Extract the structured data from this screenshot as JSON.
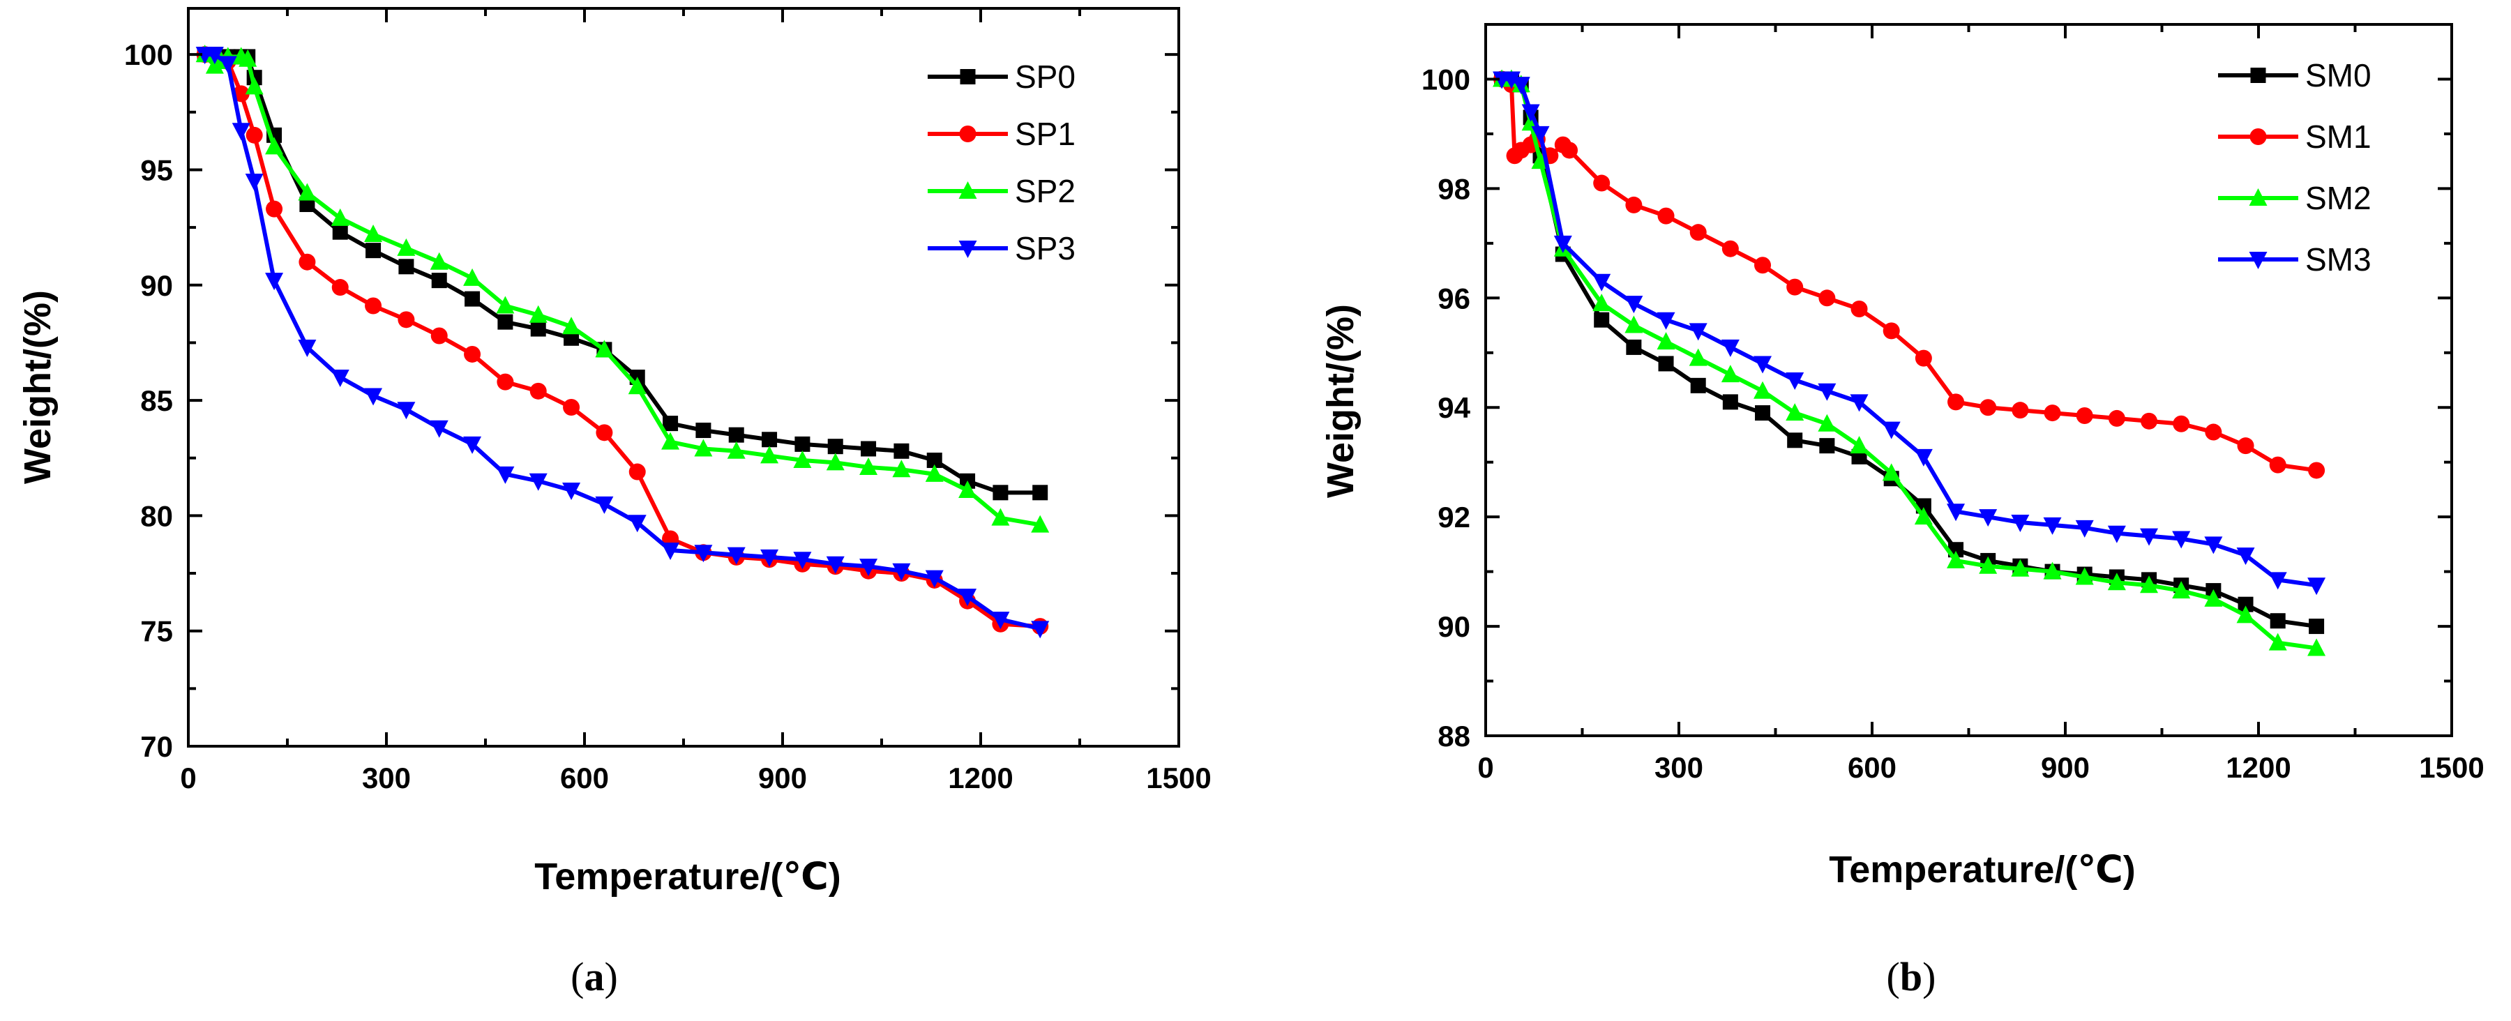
{
  "chart_data": [
    {
      "type": "line",
      "panel_label": "(a)",
      "xlabel": "Temperature/(℃)",
      "ylabel": "Weight/(%)",
      "xlim": [
        0,
        1500
      ],
      "ylim": [
        70,
        102
      ],
      "xticks": [
        0,
        300,
        600,
        900,
        1200,
        1500
      ],
      "yticks": [
        70,
        75,
        80,
        85,
        90,
        95,
        100
      ],
      "grid": false,
      "legend_position": "top-right",
      "series": [
        {
          "name": "SP0",
          "color": "#000000",
          "marker": "square",
          "x": [
            25,
            40,
            50,
            60,
            80,
            90,
            100,
            130,
            180,
            230,
            280,
            330,
            380,
            430,
            480,
            530,
            580,
            630,
            680,
            730,
            780,
            830,
            880,
            930,
            980,
            1030,
            1080,
            1130,
            1180,
            1230,
            1290
          ],
          "y": [
            100,
            100,
            99.8,
            99.9,
            99.9,
            99.9,
            99.0,
            96.5,
            93.5,
            92.3,
            91.5,
            90.8,
            90.2,
            89.4,
            88.4,
            88.1,
            87.7,
            87.2,
            86.0,
            84.0,
            83.7,
            83.5,
            83.3,
            83.1,
            83.0,
            82.9,
            82.8,
            82.4,
            81.5,
            81.0,
            81.0
          ]
        },
        {
          "name": "SP1",
          "color": "#ff0000",
          "marker": "circle",
          "x": [
            25,
            40,
            60,
            80,
            100,
            130,
            180,
            230,
            280,
            330,
            380,
            430,
            480,
            530,
            580,
            630,
            680,
            730,
            780,
            830,
            880,
            930,
            980,
            1030,
            1080,
            1130,
            1180,
            1230,
            1290
          ],
          "y": [
            100,
            99.9,
            99.7,
            98.3,
            96.5,
            93.3,
            91.0,
            89.9,
            89.1,
            88.5,
            87.8,
            87.0,
            85.8,
            85.4,
            84.7,
            83.6,
            81.9,
            79.0,
            78.4,
            78.2,
            78.1,
            77.9,
            77.8,
            77.6,
            77.5,
            77.2,
            76.3,
            75.3,
            75.2
          ]
        },
        {
          "name": "SP2",
          "color": "#00ff00",
          "marker": "triangle-up",
          "x": [
            25,
            40,
            50,
            60,
            80,
            90,
            100,
            130,
            180,
            230,
            280,
            330,
            380,
            430,
            480,
            530,
            580,
            630,
            680,
            730,
            780,
            830,
            880,
            930,
            980,
            1030,
            1080,
            1130,
            1180,
            1230,
            1290
          ],
          "y": [
            100,
            99.5,
            99.7,
            99.9,
            99.9,
            99.8,
            98.6,
            96.0,
            94.0,
            92.9,
            92.2,
            91.6,
            91.0,
            90.3,
            89.1,
            88.7,
            88.2,
            87.2,
            85.6,
            83.2,
            82.9,
            82.8,
            82.6,
            82.4,
            82.3,
            82.1,
            82.0,
            81.8,
            81.1,
            79.9,
            79.6
          ]
        },
        {
          "name": "SP3",
          "color": "#0000ff",
          "marker": "triangle-down",
          "x": [
            25,
            40,
            60,
            80,
            100,
            130,
            180,
            230,
            280,
            330,
            380,
            430,
            480,
            530,
            580,
            630,
            680,
            730,
            780,
            830,
            880,
            930,
            980,
            1030,
            1080,
            1130,
            1180,
            1230,
            1290
          ],
          "y": [
            100,
            100,
            99.6,
            96.7,
            94.5,
            90.2,
            87.3,
            86.0,
            85.2,
            84.6,
            83.8,
            83.1,
            81.8,
            81.5,
            81.1,
            80.5,
            79.7,
            78.5,
            78.4,
            78.3,
            78.2,
            78.1,
            77.9,
            77.8,
            77.6,
            77.3,
            76.5,
            75.5,
            75.1
          ]
        }
      ]
    },
    {
      "type": "line",
      "panel_label": "(b)",
      "xlabel": "Temperature/(℃)",
      "ylabel": "Weight/(%)",
      "xlim": [
        0,
        1500
      ],
      "ylim": [
        88,
        101
      ],
      "xticks": [
        0,
        300,
        600,
        900,
        1200,
        1500
      ],
      "yticks": [
        88,
        90,
        92,
        94,
        96,
        98,
        100
      ],
      "grid": false,
      "legend_position": "top-right",
      "series": [
        {
          "name": "SM0",
          "color": "#000000",
          "marker": "square",
          "x": [
            25,
            40,
            55,
            70,
            85,
            120,
            180,
            230,
            280,
            330,
            380,
            430,
            480,
            530,
            580,
            630,
            680,
            730,
            780,
            830,
            880,
            930,
            980,
            1030,
            1080,
            1130,
            1180,
            1230,
            1290
          ],
          "y": [
            100,
            100,
            99.9,
            99.3,
            98.6,
            96.8,
            95.6,
            95.1,
            94.8,
            94.4,
            94.1,
            93.9,
            93.4,
            93.3,
            93.1,
            92.7,
            92.2,
            91.4,
            91.2,
            91.1,
            91.0,
            90.95,
            90.9,
            90.85,
            90.75,
            90.65,
            90.4,
            90.1,
            90.0
          ]
        },
        {
          "name": "SM1",
          "color": "#ff0000",
          "marker": "circle",
          "x": [
            25,
            40,
            45,
            55,
            70,
            80,
            100,
            120,
            130,
            180,
            230,
            280,
            330,
            380,
            430,
            480,
            530,
            580,
            630,
            680,
            730,
            780,
            830,
            880,
            930,
            980,
            1030,
            1080,
            1130,
            1180,
            1230,
            1290
          ],
          "y": [
            100,
            99.9,
            98.6,
            98.7,
            98.8,
            98.9,
            98.6,
            98.8,
            98.7,
            98.1,
            97.7,
            97.5,
            97.2,
            96.9,
            96.6,
            96.2,
            96.0,
            95.8,
            95.4,
            94.9,
            94.1,
            94.0,
            93.95,
            93.9,
            93.85,
            93.8,
            93.75,
            93.7,
            93.55,
            93.3,
            92.95,
            92.85
          ]
        },
        {
          "name": "SM2",
          "color": "#00ff00",
          "marker": "triangle-up",
          "x": [
            25,
            40,
            55,
            70,
            85,
            120,
            180,
            230,
            280,
            330,
            380,
            430,
            480,
            530,
            580,
            630,
            680,
            730,
            780,
            830,
            880,
            930,
            980,
            1030,
            1080,
            1130,
            1180,
            1230,
            1290
          ],
          "y": [
            100,
            100,
            99.9,
            99.2,
            98.5,
            96.9,
            95.9,
            95.5,
            95.2,
            94.9,
            94.6,
            94.3,
            93.9,
            93.7,
            93.3,
            92.8,
            92.0,
            91.2,
            91.1,
            91.05,
            91.0,
            90.9,
            90.8,
            90.75,
            90.65,
            90.5,
            90.2,
            89.7,
            89.6
          ]
        },
        {
          "name": "SM3",
          "color": "#0000ff",
          "marker": "triangle-down",
          "x": [
            25,
            40,
            55,
            70,
            85,
            120,
            180,
            230,
            280,
            330,
            380,
            430,
            480,
            530,
            580,
            630,
            680,
            730,
            780,
            830,
            880,
            930,
            980,
            1030,
            1080,
            1130,
            1180,
            1230,
            1290
          ],
          "y": [
            100,
            100,
            99.9,
            99.4,
            99.0,
            97.0,
            96.3,
            95.9,
            95.6,
            95.4,
            95.1,
            94.8,
            94.5,
            94.3,
            94.1,
            93.6,
            93.1,
            92.1,
            92.0,
            91.9,
            91.85,
            91.8,
            91.7,
            91.65,
            91.6,
            91.5,
            91.3,
            90.85,
            90.75
          ]
        }
      ]
    }
  ]
}
